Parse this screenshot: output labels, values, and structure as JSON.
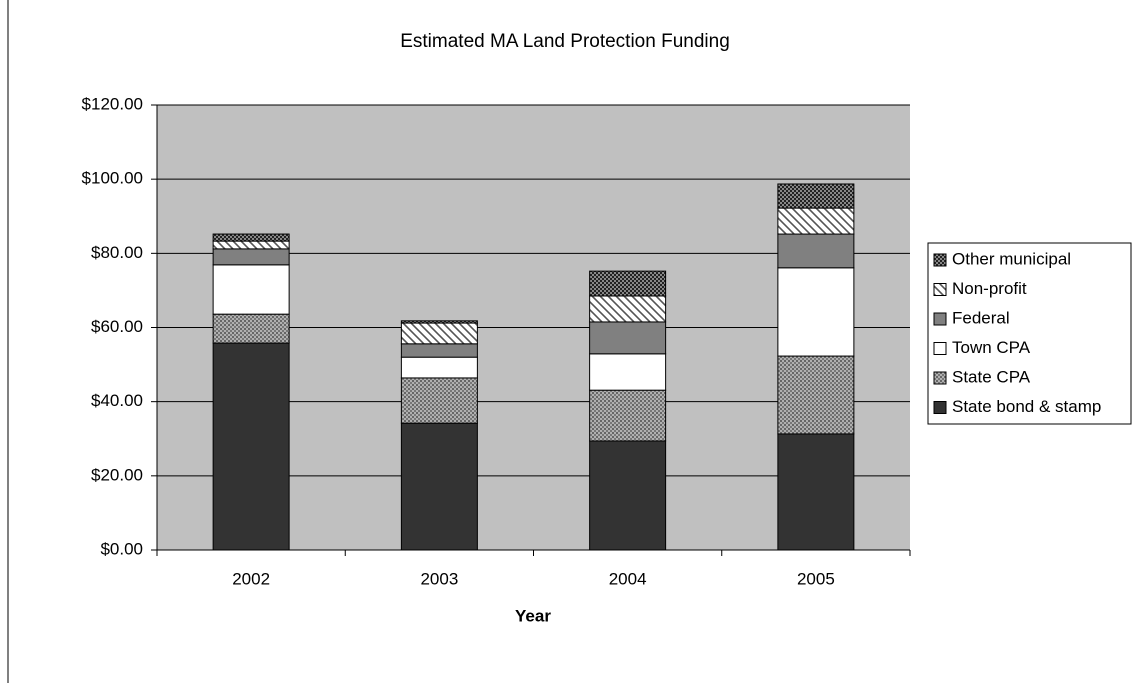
{
  "chart_data": {
    "type": "stacked_bar",
    "title": "Estimated MA Land Protection Funding",
    "x_label": "Year",
    "categories": [
      "2002",
      "2003",
      "2004",
      "2005"
    ],
    "series": [
      {
        "name": "State bond & stamp",
        "color": "#333333",
        "pattern": "solid",
        "values": [
          55.8,
          34.2,
          29.4,
          31.3
        ]
      },
      {
        "name": "State CPA",
        "color": "#8c8c8c",
        "pattern": "dots",
        "values": [
          7.8,
          12.2,
          13.7,
          21.0
        ]
      },
      {
        "name": "Town CPA",
        "color": "#ffffff",
        "pattern": "solid",
        "values": [
          13.3,
          5.6,
          9.8,
          23.8
        ]
      },
      {
        "name": "Federal",
        "color": "#808080",
        "pattern": "solid",
        "values": [
          4.3,
          3.6,
          8.6,
          9.1
        ]
      },
      {
        "name": "Non-profit",
        "color": "#ffffff",
        "pattern": "diagonal",
        "values": [
          2.1,
          5.6,
          7.0,
          7.0
        ]
      },
      {
        "name": "Other municipal",
        "color": "#555555",
        "pattern": "crosshatch",
        "values": [
          1.9,
          0.6,
          6.7,
          6.5
        ]
      }
    ],
    "ylim": [
      0,
      120
    ],
    "yticks": [
      {
        "value": 0,
        "label": "$0.00"
      },
      {
        "value": 20,
        "label": "$20.00"
      },
      {
        "value": 40,
        "label": "$40.00"
      },
      {
        "value": 60,
        "label": "$60.00"
      },
      {
        "value": 80,
        "label": "$80.00"
      },
      {
        "value": 100,
        "label": "$100.00"
      },
      {
        "value": 120,
        "label": "$120.00"
      }
    ],
    "grid": true,
    "legend": "right"
  }
}
